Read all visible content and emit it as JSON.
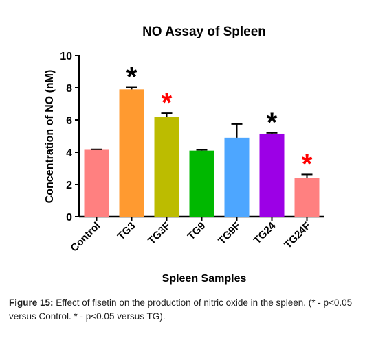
{
  "chart_data": {
    "type": "bar",
    "title": "NO Assay of Spleen",
    "xlabel": "Spleen Samples",
    "ylabel": "Concentration of NO (nM)",
    "ylim": [
      0,
      10
    ],
    "yticks": [
      "0",
      "2",
      "4",
      "6",
      "8",
      "10"
    ],
    "categories": [
      "Control",
      "TG3",
      "TG3F",
      "TG9",
      "TG9F",
      "TG24",
      "TG24F"
    ],
    "values": [
      4.15,
      7.9,
      6.2,
      4.1,
      4.9,
      5.15,
      2.4
    ],
    "error": [
      0.03,
      0.12,
      0.22,
      0.05,
      0.85,
      0.05,
      0.22
    ],
    "colors": [
      "#ff8080",
      "#ff9a30",
      "#bcbc00",
      "#00b800",
      "#4da6ff",
      "#9c00e6",
      "#ff8080"
    ],
    "significance": [
      "",
      "*",
      "*",
      "",
      "",
      "*",
      "*"
    ],
    "significance_colors": [
      "",
      "#000000",
      "#ff0000",
      "",
      "",
      "#000000",
      "#ff0000"
    ],
    "grid": false,
    "legend": "none"
  },
  "caption": {
    "label": "Figure 15:",
    "text": " Effect of fisetin on the production of nitric oxide in the spleen. (* - p<0.05 versus Control. * - p<0.05 versus TG)."
  }
}
